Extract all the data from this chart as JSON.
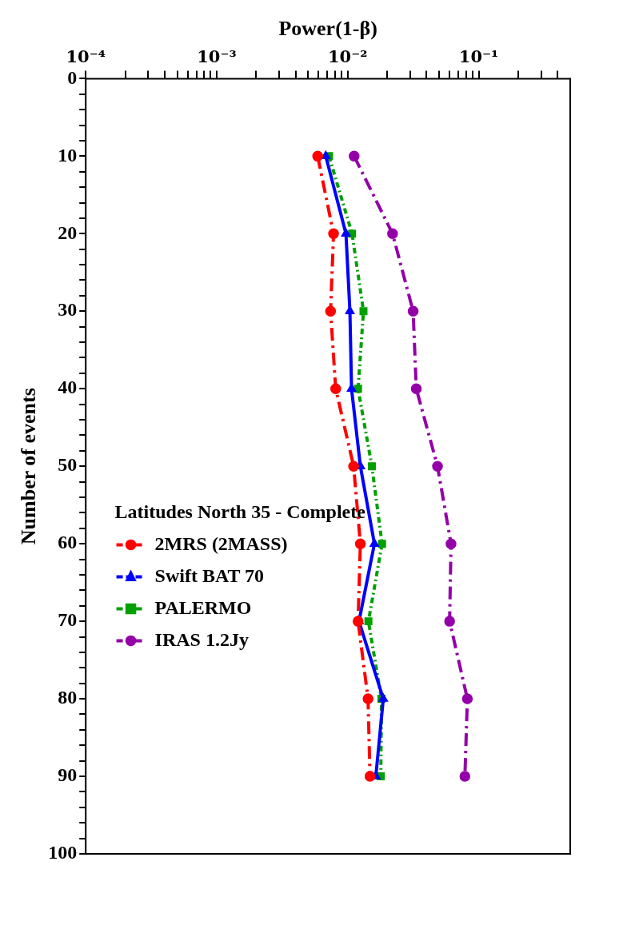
{
  "chart_data": {
    "type": "line",
    "xlabel": "Power(1-β)",
    "ylabel": "Number of events",
    "legend_title": "Latitudes North 35 - Complete",
    "legend": "bottom left",
    "grid": false,
    "log": "x",
    "ylim": [
      100,
      0
    ],
    "yticks": [
      0,
      {
        "value": 2,
        "label": null
      },
      {
        "value": 4,
        "label": null
      },
      {
        "value": 6,
        "label": null
      },
      {
        "value": 8,
        "label": null
      },
      10,
      {
        "value": 12,
        "label": null
      },
      {
        "value": 14,
        "label": null
      },
      {
        "value": 16,
        "label": null
      },
      {
        "value": 18,
        "label": null
      },
      20,
      {
        "value": 22,
        "label": null
      },
      {
        "value": 24,
        "label": null
      },
      {
        "value": 26,
        "label": null
      },
      {
        "value": 28,
        "label": null
      },
      30,
      {
        "value": 32,
        "label": null
      },
      {
        "value": 34,
        "label": null
      },
      {
        "value": 36,
        "label": null
      },
      {
        "value": 38,
        "label": null
      },
      40,
      {
        "value": 42,
        "label": null
      },
      {
        "value": 44,
        "label": null
      },
      {
        "value": 46,
        "label": null
      },
      {
        "value": 48,
        "label": null
      },
      50,
      {
        "value": 52,
        "label": null
      },
      {
        "value": 54,
        "label": null
      },
      {
        "value": 56,
        "label": null
      },
      {
        "value": 58,
        "label": null
      },
      60,
      {
        "value": 62,
        "label": null
      },
      {
        "value": 64,
        "label": null
      },
      {
        "value": 66,
        "label": null
      },
      {
        "value": 68,
        "label": null
      },
      70,
      {
        "value": 72,
        "label": null
      },
      {
        "value": 74,
        "label": null
      },
      {
        "value": 76,
        "label": null
      },
      {
        "value": 78,
        "label": null
      },
      80,
      {
        "value": 82,
        "label": null
      },
      {
        "value": 84,
        "label": null
      },
      {
        "value": 86,
        "label": null
      },
      {
        "value": 88,
        "label": null
      },
      90,
      {
        "value": 92,
        "label": null
      },
      {
        "value": 94,
        "label": null
      },
      {
        "value": 96,
        "label": null
      },
      {
        "value": 98,
        "label": null
      },
      100
    ],
    "xlim": [
      0.0001,
      0.5
    ],
    "xticks": [
      {
        "value": 0.0001,
        "label": "10⁻⁴"
      },
      {
        "value": 0.0002,
        "label": null
      },
      {
        "value": 0.0003,
        "label": null
      },
      {
        "value": 0.0004,
        "label": null
      },
      {
        "value": 0.0005,
        "label": null
      },
      {
        "value": 0.0006,
        "label": null
      },
      {
        "value": 0.0007,
        "label": null
      },
      {
        "value": 0.0008,
        "label": null
      },
      {
        "value": 0.0009,
        "label": null
      },
      {
        "value": 0.001,
        "label": "10⁻³"
      },
      {
        "value": 0.002,
        "label": null
      },
      {
        "value": 0.003,
        "label": null
      },
      {
        "value": 0.004,
        "label": null
      },
      {
        "value": 0.005,
        "label": null
      },
      {
        "value": 0.006,
        "label": null
      },
      {
        "value": 0.007,
        "label": null
      },
      {
        "value": 0.008,
        "label": null
      },
      {
        "value": 0.009,
        "label": null
      },
      {
        "value": 0.01,
        "label": "10⁻²"
      },
      {
        "value": 0.02,
        "label": null
      },
      {
        "value": 0.03,
        "label": null
      },
      {
        "value": 0.04,
        "label": null
      },
      {
        "value": 0.05,
        "label": null
      },
      {
        "value": 0.06,
        "label": null
      },
      {
        "value": 0.07,
        "label": null
      },
      {
        "value": 0.08,
        "label": null
      },
      {
        "value": 0.09,
        "label": null
      },
      {
        "value": 0.1,
        "label": "10⁻¹"
      },
      {
        "value": 0.2,
        "label": null
      },
      {
        "value": 0.3,
        "label": null
      },
      {
        "value": 0.4,
        "label": null
      }
    ],
    "series": [
      {
        "name": "2MRS (2MASS)",
        "color": "#ff0000",
        "marker": "circle",
        "line_style": "dashed",
        "x": [
          0.0059,
          0.0078,
          0.0074,
          0.0081,
          0.0111,
          0.0125,
          0.012,
          0.0143,
          0.0148
        ],
        "values": [
          10,
          20,
          30,
          40,
          50,
          60,
          70,
          80,
          90
        ]
      },
      {
        "name": "Swift BAT 70",
        "color": "#0000ff",
        "marker": "triangle",
        "line_style": "solid",
        "x": [
          0.0068,
          0.0097,
          0.0104,
          0.0107,
          0.0125,
          0.016,
          0.0122,
          0.0187,
          0.0164
        ],
        "values": [
          10,
          20,
          30,
          40,
          50,
          60,
          70,
          80,
          90
        ]
      },
      {
        "name": "PALERMO",
        "color": "#00a000",
        "marker": "square",
        "line_style": "dotted",
        "x": [
          0.0072,
          0.0108,
          0.0132,
          0.012,
          0.0153,
          0.0183,
          0.0144,
          0.0181,
          0.0179
        ],
        "values": [
          10,
          20,
          30,
          40,
          50,
          60,
          70,
          80,
          90
        ]
      },
      {
        "name": "IRAS 1.2Jy",
        "color": "#9400a8",
        "marker": "circle",
        "line_style": "dashed",
        "x": [
          0.0112,
          0.022,
          0.0316,
          0.0334,
          0.0485,
          0.0615,
          0.06,
          0.082,
          0.0785
        ],
        "values": [
          10,
          20,
          30,
          40,
          50,
          60,
          70,
          80,
          90
        ]
      }
    ]
  }
}
